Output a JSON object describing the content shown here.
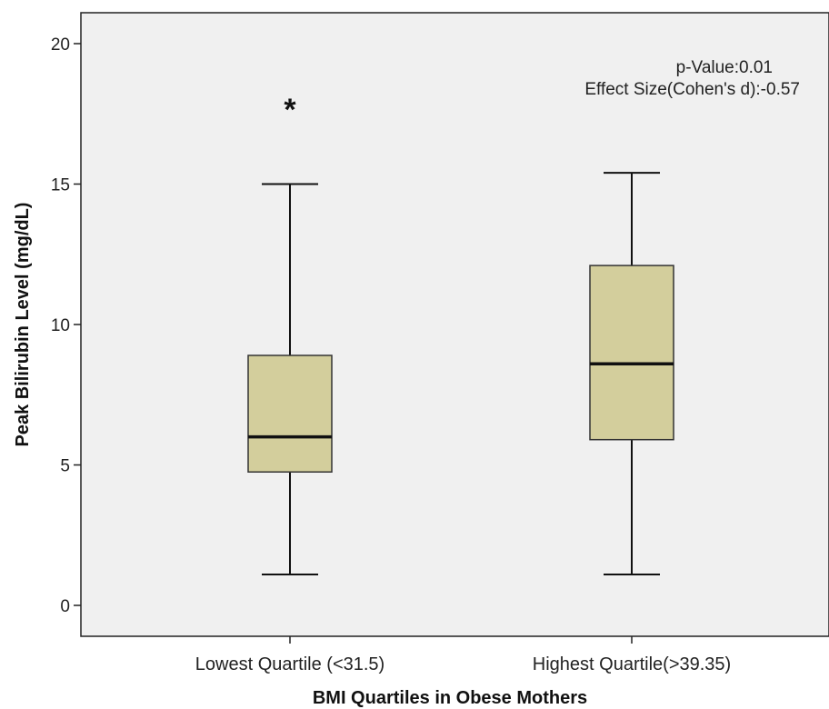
{
  "chart_data": {
    "type": "box",
    "xlabel": "BMI Quartiles in Obese Mothers",
    "ylabel": "Peak Bilirubin Level (mg/dL)",
    "ylim": [
      -1.1,
      21.1
    ],
    "yticks": [
      0,
      5,
      10,
      15,
      20
    ],
    "grid": false,
    "categories": [
      "Lowest Quartile (<31.5)",
      "Highest Quartile(>39.35)"
    ],
    "boxes": [
      {
        "category": "Lowest Quartile (<31.5)",
        "whisker_low": 1.1,
        "q1": 4.75,
        "median": 6.0,
        "q3": 8.9,
        "whisker_high": 15.0,
        "outliers": [
          18.0
        ]
      },
      {
        "category": "Highest Quartile(>39.35)",
        "whisker_low": 1.1,
        "q1": 5.9,
        "median": 8.6,
        "q3": 12.1,
        "whisker_high": 15.4,
        "outliers": []
      }
    ],
    "outlier_marker": "*",
    "annotations": [
      "p-Value:0.01",
      "Effect Size(Cohen's d):-0.57"
    ],
    "colors": {
      "plot_background": "#f0f0f0",
      "box_fill": "#d3ce9c",
      "line": "#111111"
    }
  }
}
